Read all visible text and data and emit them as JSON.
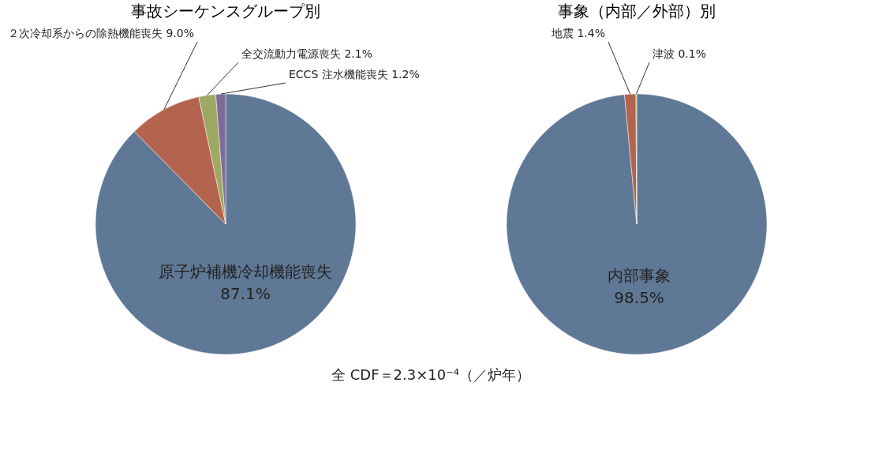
{
  "chart_data": [
    {
      "type": "pie",
      "title": "事故シーケンスグループ別",
      "categories": [
        "原子炉補機冷却機能喪失",
        "２次冷却系からの除熱機能喪失",
        "全交流動力電源喪失",
        "ECCS 注水機能喪失"
      ],
      "values": [
        87.1,
        9.0,
        2.1,
        1.2
      ],
      "colors": [
        "#5f7896",
        "#b4634f",
        "#9fa862",
        "#7f6b99"
      ],
      "value_labels": [
        "87.1%",
        "9.0%",
        "2.1%",
        "1.2%"
      ],
      "annotations": [
        "全 CDF＝2.3×10⁻⁴（／炉年）"
      ],
      "legend": false
    },
    {
      "type": "pie",
      "title": "事象（内部／外部）別",
      "categories": [
        "内部事象",
        "地震",
        "津波"
      ],
      "values": [
        98.5,
        1.4,
        0.1
      ],
      "colors": [
        "#5f7896",
        "#b4634f",
        "#9fa862"
      ],
      "value_labels": [
        "98.5%",
        "1.4%",
        "0.1%"
      ],
      "legend": false
    }
  ]
}
